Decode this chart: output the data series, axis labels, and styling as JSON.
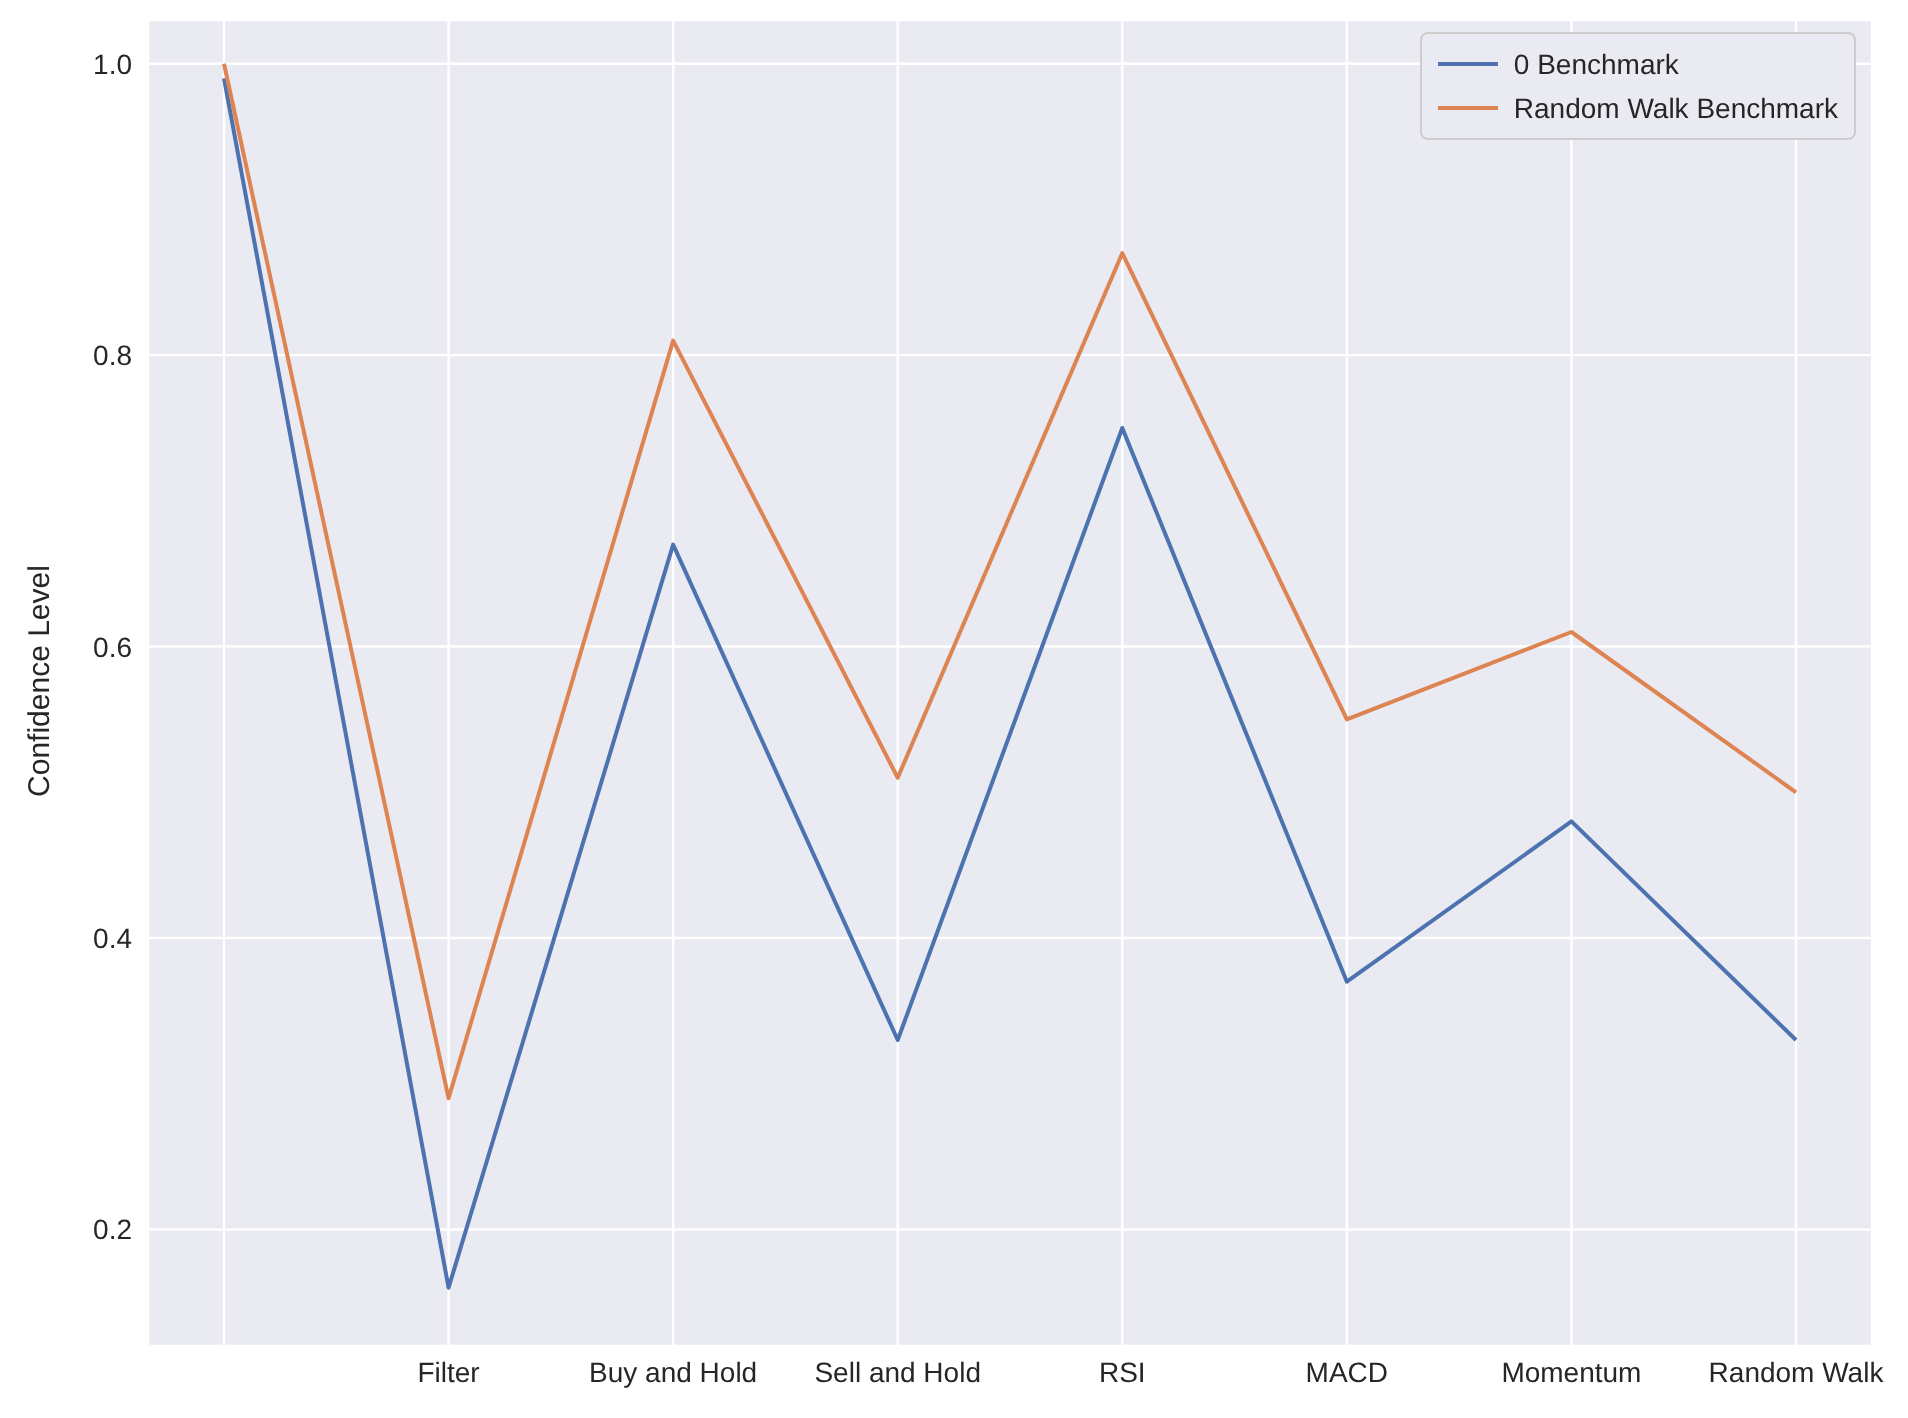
{
  "chart_data": {
    "type": "line",
    "ylabel": "Confidence Level",
    "categories": [
      null,
      "Filter",
      "Buy and Hold",
      "Sell and Hold",
      "RSI",
      "MACD",
      "Momentum",
      "Random Walk"
    ],
    "series": [
      {
        "name": "0 Benchmark",
        "color": "#4c72b0",
        "values": [
          0.99,
          0.16,
          0.67,
          0.33,
          0.75,
          0.37,
          0.48,
          0.33
        ]
      },
      {
        "name": "Random Walk Benchmark",
        "color": "#dd8452",
        "values": [
          1.0,
          0.29,
          0.81,
          0.51,
          0.87,
          0.55,
          0.61,
          0.5
        ]
      }
    ],
    "ylim": [
      0.12,
      1.03
    ],
    "yticks": [
      {
        "value": 0.2,
        "label": "0.2"
      },
      {
        "value": 0.4,
        "label": "0.4"
      },
      {
        "value": 0.6,
        "label": "0.6"
      },
      {
        "value": 0.8,
        "label": "0.8"
      },
      {
        "value": 1.0,
        "label": "1.0"
      }
    ],
    "grid": true,
    "legend": "top right",
    "marker": "none",
    "line_style": "solid"
  }
}
